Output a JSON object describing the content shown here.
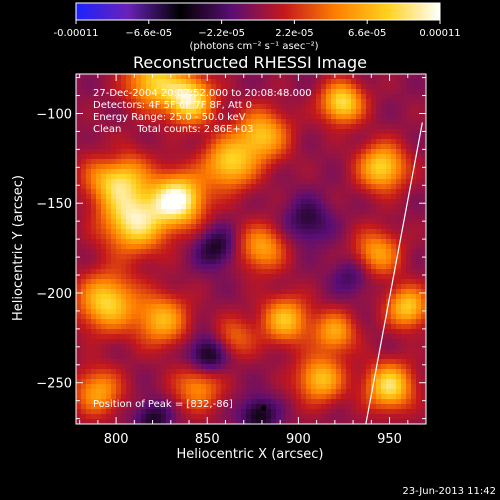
{
  "chart_data": {
    "type": "heatmap",
    "title": "Reconstructed RHESSI Image",
    "xlabel": "Heliocentric X (arcsec)",
    "ylabel": "Heliocentric Y (arcsec)",
    "xlim": [
      778,
      970
    ],
    "ylim": [
      -273,
      -78
    ],
    "x_ticks": [
      800,
      850,
      900,
      950
    ],
    "y_ticks": [
      -100,
      -150,
      -200,
      -250
    ],
    "grid": false,
    "colorbar": {
      "orientation": "horizontal",
      "placement": "top",
      "range": [
        -0.00011,
        0.00011
      ],
      "tick_values": [
        -0.00011,
        -6.6e-05,
        -2.2e-05,
        2.2e-05,
        6.6e-05,
        0.00011
      ],
      "tick_labels": [
        "-0.00011",
        "−6.6e-05",
        "−2.2e-05",
        "2.2e-05",
        "6.6e-05",
        "0.00011"
      ],
      "units_label": "(photons cm⁻² s⁻¹ asec⁻²)",
      "colors": [
        "#1c22ff",
        "#6a22b8",
        "#000000",
        "#5a0e74",
        "#c4181c",
        "#ff7f00",
        "#ffd21f",
        "#ffffff"
      ]
    },
    "annotations": [
      "27-Dec-2004 20:07:52.000 to 20:08:48.000",
      "Detectors: 4F 5F 6F 7F 8F, Att 0",
      "Energy Range: 25.0 - 50.0 keV",
      "Clean     Total counts: 2.86E+03",
      "Position of Peak = [832,-86]"
    ],
    "peak_position": [
      832,
      -86
    ],
    "limb_line": [
      [
        937,
        -273
      ],
      [
        968,
        -105
      ]
    ],
    "sources": [
      {
        "x": 834,
        "y": -148,
        "amp": 1.0,
        "w": 10
      },
      {
        "x": 810,
        "y": -160,
        "amp": 0.85,
        "w": 12
      },
      {
        "x": 800,
        "y": -135,
        "amp": 0.8,
        "w": 11
      },
      {
        "x": 795,
        "y": -205,
        "amp": 0.75,
        "w": 11
      },
      {
        "x": 825,
        "y": -215,
        "amp": 0.6,
        "w": 10
      },
      {
        "x": 862,
        "y": -128,
        "amp": 0.7,
        "w": 10
      },
      {
        "x": 880,
        "y": -112,
        "amp": 0.65,
        "w": 10
      },
      {
        "x": 840,
        "y": -92,
        "amp": 0.9,
        "w": 9
      },
      {
        "x": 820,
        "y": -82,
        "amp": 0.7,
        "w": 10
      },
      {
        "x": 880,
        "y": -175,
        "amp": 0.55,
        "w": 9
      },
      {
        "x": 893,
        "y": -215,
        "amp": 0.65,
        "w": 9
      },
      {
        "x": 924,
        "y": -94,
        "amp": 0.8,
        "w": 8
      },
      {
        "x": 946,
        "y": -130,
        "amp": 0.75,
        "w": 9
      },
      {
        "x": 943,
        "y": -178,
        "amp": 0.55,
        "w": 9
      },
      {
        "x": 960,
        "y": -208,
        "amp": 0.7,
        "w": 8
      },
      {
        "x": 920,
        "y": -222,
        "amp": 0.55,
        "w": 8
      },
      {
        "x": 912,
        "y": -248,
        "amp": 0.65,
        "w": 9
      },
      {
        "x": 950,
        "y": -252,
        "amp": 0.8,
        "w": 9
      },
      {
        "x": 845,
        "y": -252,
        "amp": 0.5,
        "w": 9
      },
      {
        "x": 790,
        "y": -255,
        "amp": 0.55,
        "w": 9
      },
      {
        "x": 865,
        "y": -225,
        "amp": 0.35,
        "w": 8
      },
      {
        "x": 855,
        "y": -175,
        "amp": -0.35,
        "w": 8
      },
      {
        "x": 850,
        "y": -235,
        "amp": -0.45,
        "w": 8
      },
      {
        "x": 878,
        "y": -268,
        "amp": -0.4,
        "w": 7
      },
      {
        "x": 905,
        "y": -160,
        "amp": -0.3,
        "w": 9
      },
      {
        "x": 820,
        "y": -270,
        "amp": -0.35,
        "w": 7
      },
      {
        "x": 798,
        "y": -125,
        "amp": -0.3,
        "w": 7
      },
      {
        "x": 930,
        "y": -190,
        "amp": -0.25,
        "w": 8
      }
    ]
  },
  "footer": {
    "timestamp": "23-Jun-2013 11:42"
  }
}
